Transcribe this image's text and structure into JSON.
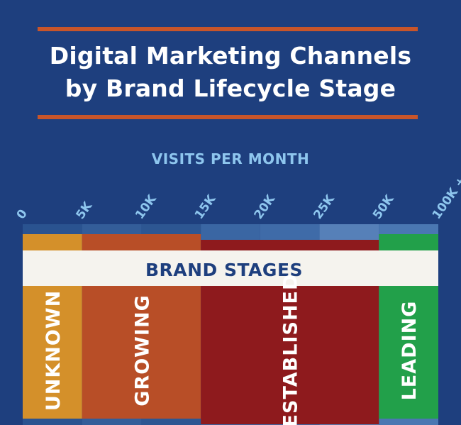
{
  "header": {
    "title_line1": "Digital Marketing Channels",
    "title_line2": "by Brand Lifecycle Stage",
    "subtitle": "VISITS PER MONTH"
  },
  "colors": {
    "background": "#1e3f7e",
    "accent_rule": "#c8552a",
    "tick_text": "#8ec6ee",
    "banner": "#f5f3ee"
  },
  "chart_data": {
    "type": "bar",
    "title": "Digital Marketing Channels by Brand Lifecycle Stage",
    "xlabel": "VISITS PER MONTH",
    "ticks": [
      "0",
      "5K",
      "10K",
      "15K",
      "20K",
      "25K",
      "50K",
      "100K +"
    ],
    "banner_label": "BRAND STAGES",
    "stages": [
      {
        "name": "UNKNOWN",
        "start": "0",
        "end": "5K",
        "color": "#d4902a"
      },
      {
        "name": "GROWING",
        "start": "5K",
        "end": "15K",
        "color": "#b84e27"
      },
      {
        "name": "ESTABLISHED",
        "start": "15K",
        "end": "50K",
        "color": "#8e1a1d"
      },
      {
        "name": "LEADING",
        "start": "50K",
        "end": "100K +",
        "color": "#22a04a"
      }
    ]
  }
}
